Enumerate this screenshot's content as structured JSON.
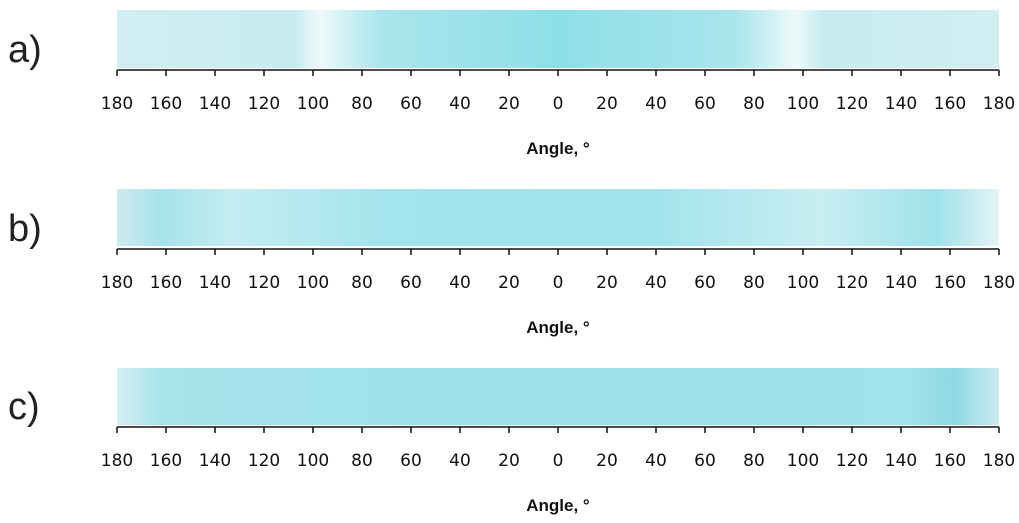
{
  "panels": [
    {
      "label": "a)",
      "ticks": [
        180,
        160,
        140,
        120,
        100,
        80,
        60,
        40,
        20,
        0,
        20,
        40,
        60,
        80,
        100,
        120,
        140,
        160,
        180
      ],
      "axis_label": "Angle, °"
    },
    {
      "label": "b)",
      "ticks": [
        180,
        160,
        140,
        120,
        100,
        80,
        60,
        40,
        20,
        0,
        20,
        40,
        60,
        80,
        100,
        120,
        140,
        160,
        180
      ],
      "axis_label": "Angle, °"
    },
    {
      "label": "c)",
      "ticks": [
        180,
        160,
        140,
        120,
        100,
        80,
        60,
        40,
        20,
        0,
        20,
        40,
        60,
        80,
        100,
        120,
        140,
        160,
        180
      ],
      "axis_label": "Angle, °"
    }
  ]
}
